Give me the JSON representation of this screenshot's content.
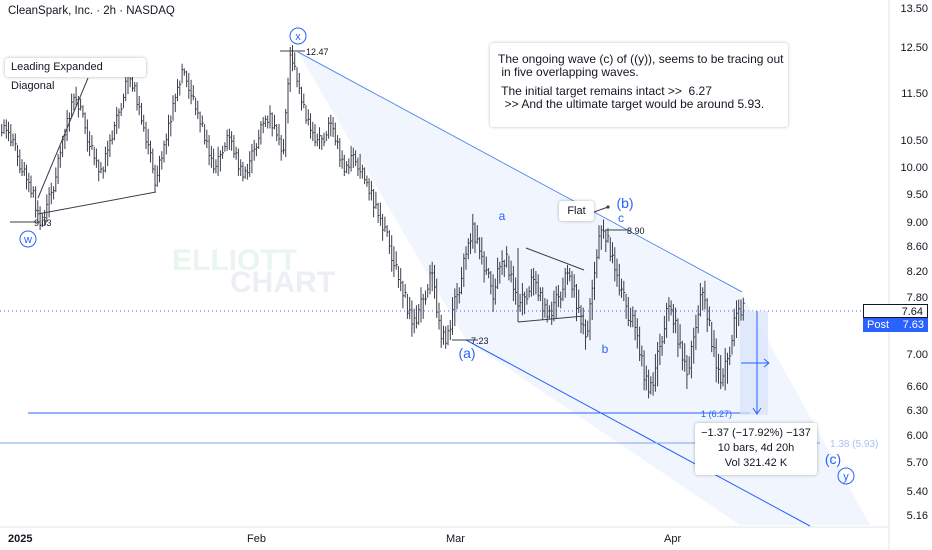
{
  "chart_data": {
    "type": "line",
    "title": "CleanSpark, Inc. · 2h · NASDAQ",
    "watermark": [
      "ELLIOTT",
      "CHART"
    ],
    "y_ticks": [
      "13.50",
      "12.50",
      "11.50",
      "10.50",
      "10.00",
      "9.50",
      "9.00",
      "8.60",
      "8.20",
      "7.80",
      "7.00",
      "6.60",
      "6.30",
      "6.00",
      "5.70",
      "5.40",
      "5.16"
    ],
    "x_ticks": [
      {
        "label": "2025"
      },
      {
        "label": "Feb"
      },
      {
        "label": "Mar"
      },
      {
        "label": "Apr"
      }
    ],
    "price_series": {
      "name": "",
      "values": [
        10.8,
        10.5,
        10.1,
        9.8,
        9.5,
        9.03,
        9.3,
        9.7,
        10.3,
        10.9,
        11.5,
        11.2,
        10.6,
        10.2,
        9.9,
        10.4,
        10.8,
        11.3,
        11.9,
        11.6,
        11.0,
        10.4,
        9.8,
        10.2,
        10.8,
        11.5,
        12.0,
        11.7,
        11.2,
        10.8,
        10.3,
        10.0,
        10.4,
        10.6,
        10.2,
        9.9,
        10.1,
        10.5,
        10.9,
        11.0,
        10.7,
        10.3,
        12.47,
        11.8,
        11.2,
        10.8,
        10.5,
        10.6,
        10.9,
        10.4,
        10.0,
        10.2,
        10.1,
        9.8,
        9.5,
        9.2,
        8.9,
        8.5,
        8.1,
        7.8,
        7.5,
        7.6,
        7.9,
        8.2,
        7.4,
        7.23,
        7.6,
        8.0,
        8.5,
        8.9,
        8.6,
        8.2,
        7.9,
        8.3,
        8.4,
        8.0,
        7.7,
        7.9,
        8.1,
        7.8,
        7.6,
        7.7,
        7.9,
        8.2,
        7.9,
        7.5,
        7.3,
        8.3,
        8.9,
        8.7,
        8.3,
        7.9,
        7.6,
        7.4,
        6.9,
        6.6,
        6.8,
        7.3,
        7.7,
        7.4,
        7.0,
        6.8,
        7.5,
        7.9,
        7.4,
        6.9,
        6.7,
        7.1,
        7.6,
        7.64
      ]
    },
    "wave_labels": [
      {
        "text": "w",
        "circled": true
      },
      {
        "text": "x",
        "circled": true
      },
      {
        "text": "(a)"
      },
      {
        "text": "a"
      },
      {
        "text": "b"
      },
      {
        "text": "c"
      },
      {
        "text": "(b)"
      },
      {
        "text": "(c)"
      },
      {
        "text": "y",
        "circled": true
      }
    ],
    "price_annotations": [
      {
        "text": "9.03",
        "value": 9.03
      },
      {
        "text": "12.47",
        "value": 12.47
      },
      {
        "text": "7.23",
        "value": 7.23
      },
      {
        "text": "8.90",
        "value": 8.9
      }
    ],
    "targets": [
      {
        "label": "1 (6.27)",
        "value": 6.27
      },
      {
        "label": "1.38 (5.93)",
        "value": 5.93
      }
    ],
    "callouts": {
      "diagonal": "Leading Expanded Diagonal",
      "flat": "Flat"
    },
    "note": [
      "The ongoing wave (c) of ((y)), seems to be tracing out",
      " in five overlapping waves.",
      "",
      " The initial target remains intact >>  6.27",
      "  >> And the ultimate target would be around 5.93."
    ],
    "measure": {
      "line1": "−1.37 (−17.92%) −137",
      "line2": "10 bars, 4d 20h",
      "line3": "Vol 321.42 K"
    },
    "last_price": {
      "value": "7.64",
      "post_label": "Post",
      "post_value": "7.63"
    },
    "colors": {
      "up": "#26a69a",
      "bar": "#3a3f4b",
      "line_blue": "#2962ff",
      "channel": "#90b4ee",
      "text": "#131722"
    }
  }
}
